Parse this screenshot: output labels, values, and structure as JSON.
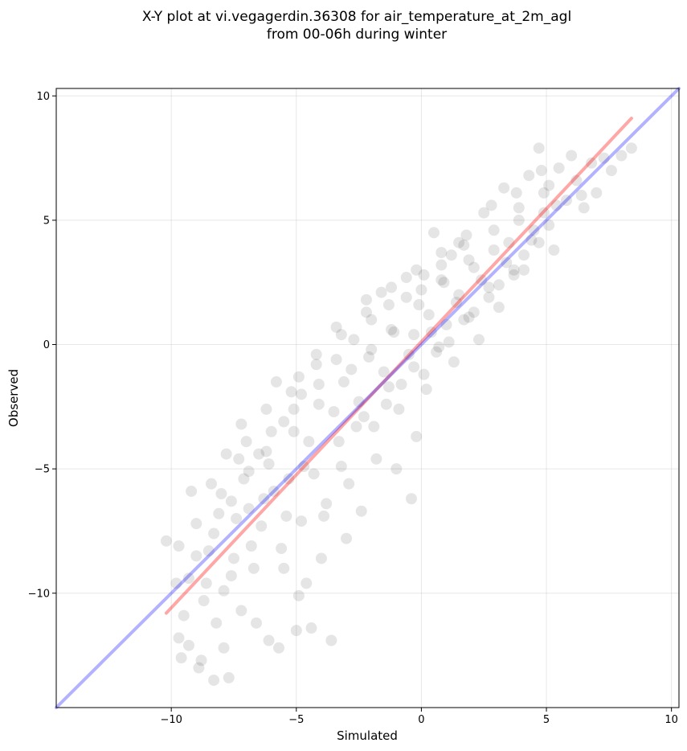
{
  "chart_data": {
    "type": "scatter",
    "title": "X-Y plot at vi.vegagerdin.36308 for air_temperature_at_2m_agl",
    "subtitle": "from 00-06h during winter",
    "xlabel": "Simulated",
    "ylabel": "Observed",
    "xlim": [
      -14.6,
      10.3
    ],
    "ylim": [
      -14.6,
      10.3
    ],
    "xticks": [
      -10,
      -5,
      0,
      5,
      10
    ],
    "yticks": [
      -10,
      -5,
      0,
      5,
      10
    ],
    "xtick_labels": [
      "−10",
      "−5",
      "0",
      "5",
      "10"
    ],
    "ytick_labels": [
      "−10",
      "−5",
      "0",
      "5",
      "10"
    ],
    "grid": true,
    "scatter_color": "#000000",
    "scatter_alpha": 0.1,
    "points": [
      [
        -10.2,
        -7.9
      ],
      [
        -9.8,
        -9.6
      ],
      [
        -9.7,
        -11.8
      ],
      [
        -9.6,
        -12.6
      ],
      [
        -9.5,
        -10.9
      ],
      [
        -9.3,
        -12.1
      ],
      [
        -9.2,
        -5.9
      ],
      [
        -9.0,
        -8.5
      ],
      [
        -8.9,
        -13.0
      ],
      [
        -8.8,
        -12.7
      ],
      [
        -8.6,
        -9.6
      ],
      [
        -8.5,
        -8.3
      ],
      [
        -8.4,
        -5.6
      ],
      [
        -8.3,
        -13.5
      ],
      [
        -8.2,
        -11.2
      ],
      [
        -8.0,
        -6.0
      ],
      [
        -7.9,
        -12.2
      ],
      [
        -7.8,
        -4.4
      ],
      [
        -7.7,
        -13.4
      ],
      [
        -7.6,
        -9.3
      ],
      [
        -7.4,
        -7.0
      ],
      [
        -7.3,
        -4.6
      ],
      [
        -7.2,
        -10.7
      ],
      [
        -7.0,
        -3.9
      ],
      [
        -6.8,
        -8.1
      ],
      [
        -6.6,
        -11.2
      ],
      [
        -6.5,
        -4.4
      ],
      [
        -6.3,
        -6.2
      ],
      [
        -6.1,
        -11.9
      ],
      [
        -6.0,
        -3.5
      ],
      [
        -5.8,
        -1.5
      ],
      [
        -5.7,
        -12.2
      ],
      [
        -5.5,
        -9.0
      ],
      [
        -5.3,
        -5.4
      ],
      [
        -5.1,
        -2.6
      ],
      [
        -5.0,
        -11.5
      ],
      [
        -4.9,
        -1.3
      ],
      [
        -4.8,
        -7.1
      ],
      [
        -4.6,
        -9.6
      ],
      [
        -4.5,
        -3.9
      ],
      [
        -4.4,
        -11.4
      ],
      [
        -4.2,
        -0.8
      ],
      [
        -4.0,
        -8.6
      ],
      [
        -3.8,
        -6.4
      ],
      [
        -3.6,
        -11.9
      ],
      [
        -3.4,
        0.7
      ],
      [
        -3.2,
        -4.9
      ],
      [
        -3.0,
        -7.8
      ],
      [
        -2.8,
        -1.0
      ],
      [
        -2.6,
        -3.3
      ],
      [
        -2.4,
        -6.7
      ],
      [
        -2.2,
        1.3
      ],
      [
        -2.0,
        -0.2
      ],
      [
        -1.8,
        -4.6
      ],
      [
        -1.6,
        2.1
      ],
      [
        -1.4,
        -2.4
      ],
      [
        -1.2,
        0.6
      ],
      [
        -1.0,
        -5.0
      ],
      [
        -0.8,
        -1.6
      ],
      [
        -0.6,
        2.7
      ],
      [
        -0.4,
        -6.2
      ],
      [
        -0.3,
        0.4
      ],
      [
        -0.2,
        -3.7
      ],
      [
        0.0,
        2.2
      ],
      [
        0.2,
        -1.8
      ],
      [
        0.3,
        1.2
      ],
      [
        0.5,
        4.5
      ],
      [
        0.6,
        -0.3
      ],
      [
        0.8,
        2.6
      ],
      [
        1.0,
        0.8
      ],
      [
        1.2,
        3.6
      ],
      [
        1.3,
        -0.7
      ],
      [
        1.5,
        2.0
      ],
      [
        1.7,
        4.0
      ],
      [
        1.9,
        1.1
      ],
      [
        2.1,
        3.1
      ],
      [
        2.3,
        0.2
      ],
      [
        2.5,
        5.3
      ],
      [
        2.7,
        2.3
      ],
      [
        2.9,
        3.8
      ],
      [
        3.1,
        1.5
      ],
      [
        3.3,
        6.3
      ],
      [
        3.5,
        4.1
      ],
      [
        3.7,
        2.8
      ],
      [
        3.9,
        5.5
      ],
      [
        4.1,
        3.0
      ],
      [
        4.3,
        6.8
      ],
      [
        4.5,
        4.6
      ],
      [
        4.7,
        7.9
      ],
      [
        4.9,
        5.3
      ],
      [
        5.1,
        6.4
      ],
      [
        5.3,
        3.8
      ],
      [
        5.5,
        7.1
      ],
      [
        5.8,
        5.8
      ],
      [
        6.0,
        7.6
      ],
      [
        6.2,
        6.6
      ],
      [
        6.5,
        5.5
      ],
      [
        6.8,
        7.3
      ],
      [
        7.0,
        6.1
      ],
      [
        7.3,
        7.5
      ],
      [
        7.6,
        7.0
      ],
      [
        8.0,
        7.6
      ],
      [
        8.4,
        7.9
      ],
      [
        -6.9,
        -6.6
      ],
      [
        -5.9,
        -5.9
      ],
      [
        -4.7,
        -4.9
      ],
      [
        -3.5,
        -2.7
      ],
      [
        -2.5,
        -2.3
      ],
      [
        -1.5,
        -1.1
      ],
      [
        -0.5,
        -0.4
      ],
      [
        0.4,
        0.5
      ],
      [
        1.4,
        1.7
      ],
      [
        2.4,
        2.6
      ],
      [
        3.4,
        3.3
      ],
      [
        4.4,
        4.2
      ],
      [
        5.4,
        5.6
      ],
      [
        6.4,
        6.0
      ],
      [
        -7.5,
        -8.6
      ],
      [
        -6.4,
        -7.3
      ],
      [
        -5.4,
        -6.9
      ],
      [
        -4.3,
        -5.2
      ],
      [
        -3.3,
        -3.9
      ],
      [
        -2.3,
        -2.9
      ],
      [
        -1.3,
        -1.7
      ],
      [
        -0.3,
        -0.9
      ],
      [
        0.7,
        -0.1
      ],
      [
        1.7,
        1.0
      ],
      [
        2.7,
        1.9
      ],
      [
        3.7,
        3.0
      ],
      [
        4.7,
        4.1
      ],
      [
        -8.1,
        -6.8
      ],
      [
        -7.1,
        -5.4
      ],
      [
        -6.1,
        -4.8
      ],
      [
        -5.1,
        -3.5
      ],
      [
        -4.1,
        -2.4
      ],
      [
        -3.1,
        -1.5
      ],
      [
        -2.1,
        -0.5
      ],
      [
        -1.1,
        0.5
      ],
      [
        -0.1,
        1.6
      ],
      [
        0.9,
        2.5
      ],
      [
        1.9,
        3.4
      ],
      [
        2.9,
        4.6
      ],
      [
        3.9,
        5.0
      ],
      [
        4.9,
        6.1
      ],
      [
        -9.3,
        -9.4
      ],
      [
        -8.7,
        -10.3
      ],
      [
        -7.9,
        -9.9
      ],
      [
        -6.7,
        -9.0
      ],
      [
        -5.6,
        -8.2
      ],
      [
        -4.9,
        -10.1
      ],
      [
        -3.9,
        -6.9
      ],
      [
        -2.9,
        -5.6
      ],
      [
        -1.9,
        -3.3
      ],
      [
        -0.9,
        -2.6
      ],
      [
        0.1,
        -1.2
      ],
      [
        1.1,
        0.1
      ],
      [
        2.1,
        1.3
      ],
      [
        3.1,
        2.4
      ],
      [
        4.1,
        3.6
      ],
      [
        5.1,
        4.8
      ],
      [
        -7.2,
        -3.2
      ],
      [
        -6.2,
        -2.6
      ],
      [
        -5.2,
        -1.9
      ],
      [
        -4.2,
        -0.4
      ],
      [
        -3.2,
        0.4
      ],
      [
        -2.2,
        1.8
      ],
      [
        -1.2,
        2.3
      ],
      [
        -0.2,
        3.0
      ],
      [
        0.8,
        3.7
      ],
      [
        1.8,
        4.4
      ],
      [
        2.8,
        5.6
      ],
      [
        3.8,
        6.1
      ],
      [
        4.8,
        7.0
      ],
      [
        -9.7,
        -8.1
      ],
      [
        -9.0,
        -7.2
      ],
      [
        -8.3,
        -7.6
      ],
      [
        -7.6,
        -6.3
      ],
      [
        -6.9,
        -5.1
      ],
      [
        -6.2,
        -4.3
      ],
      [
        -5.5,
        -3.1
      ],
      [
        -4.8,
        -2.0
      ],
      [
        -4.1,
        -1.6
      ],
      [
        -3.4,
        -0.6
      ],
      [
        -2.7,
        0.2
      ],
      [
        -2.0,
        1.0
      ],
      [
        -1.3,
        1.6
      ],
      [
        -0.6,
        1.9
      ],
      [
        0.1,
        2.8
      ],
      [
        0.8,
        3.2
      ],
      [
        1.5,
        4.1
      ]
    ],
    "series": [
      {
        "type": "line",
        "color": "#ff0000",
        "alpha": 0.35,
        "x": [
          -10.2,
          8.4
        ],
        "y": [
          -10.8,
          9.1
        ]
      },
      {
        "type": "line",
        "color": "#0000ff",
        "alpha": 0.3,
        "x": [
          -14.6,
          10.3
        ],
        "y": [
          -14.6,
          10.3
        ]
      }
    ]
  }
}
